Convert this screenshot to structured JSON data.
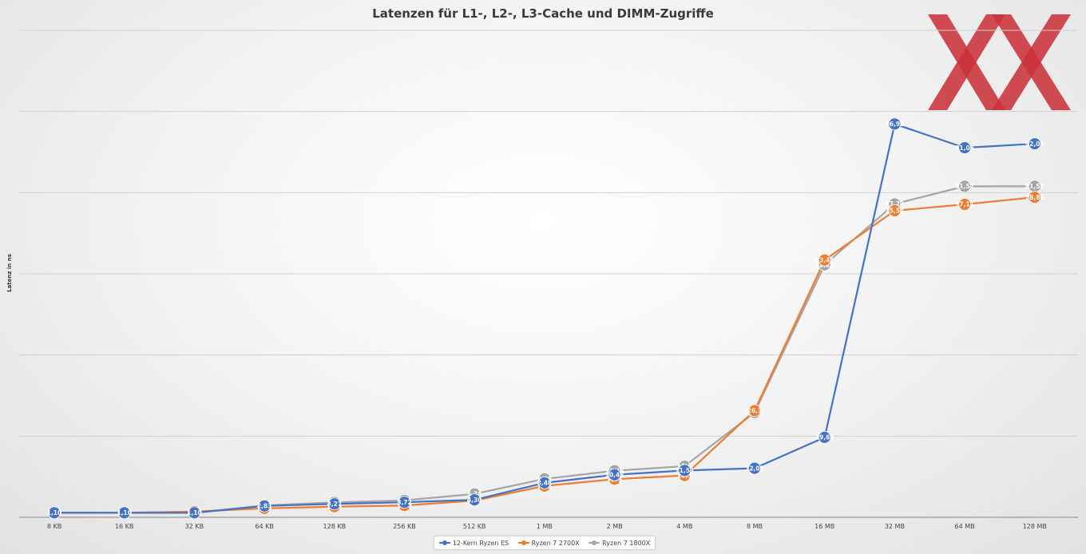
{
  "chart_data": {
    "type": "line",
    "title": "Latenzen für L1-, L2-, L3-Cache und DIMM-Zugriffe",
    "xlabel": "",
    "ylabel": "Latenz in ns",
    "categories": [
      "8 KB",
      "16 KB",
      "32 KB",
      "64 KB",
      "128 KB",
      "256 KB",
      "512 KB",
      "1 MB",
      "2 MB",
      "4 MB",
      "8 MB",
      "16 MB",
      "32 MB",
      "64 MB",
      "128 MB"
    ],
    "ylim": [
      0,
      120
    ],
    "gridlines": [
      0,
      20,
      40,
      60,
      80,
      100,
      120
    ],
    "grid": true,
    "legend": "bottom",
    "series": [
      {
        "name": "12-Kern Ryzen ES",
        "color": "#4472c4",
        "values": [
          1.1,
          1.1,
          1.1,
          2.8,
          3.3,
          3.7,
          4.3,
          8.48,
          10.48,
          11.53,
          12.07,
          19.69,
          96.92,
          91.06,
          92.05
        ],
        "labels": [
          "1,10",
          "1,10",
          "1,10",
          "2,83",
          "3,27",
          "3,72",
          "4,30",
          "8,48",
          "10,48",
          "11,53",
          "12,07",
          "19,69",
          "96,92",
          "91,06",
          "92,05"
        ]
      },
      {
        "name": "Ryzen 7 2700X",
        "color": "#ed7d31",
        "values": [
          1.1,
          1.1,
          1.4,
          2.2,
          2.6,
          2.9,
          4.1,
          7.72,
          9.39,
          10.3,
          26.3,
          63.41,
          75.54,
          77.11,
          78.86
        ],
        "labels": [
          "1,10",
          "1,10",
          "1,40",
          "2,20",
          "2,60",
          "2,90",
          "4,10",
          "7,72",
          "9,39",
          "10,3",
          "26,3",
          "63,41",
          "75,54",
          "77,11",
          "78,86"
        ]
      },
      {
        "name": "Ryzen 7 1800X",
        "color": "#a5a5a5",
        "values": [
          1.1,
          1.1,
          1.1,
          2.91,
          3.67,
          4.17,
          5.76,
          9.46,
          11.46,
          12.6,
          25.83,
          62.22,
          77.22,
          81.57,
          81.57
        ],
        "labels": [
          "1,10",
          "1,10",
          "1,10",
          "2,91",
          "3,67",
          "4,17",
          "5,76",
          "9,46",
          "11,46",
          "12,6",
          "25,83",
          "62,22",
          "77,22",
          "81,57",
          "81,57"
        ]
      }
    ]
  },
  "logo": {
    "name": "xx-logo",
    "color": "#c9323a"
  }
}
